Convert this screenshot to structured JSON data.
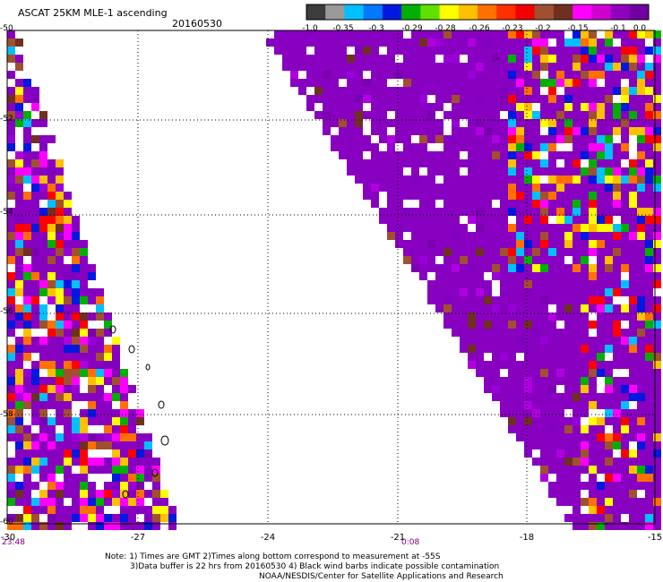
{
  "header": {
    "title": "ASCAT 25KM MLE-1 ascending",
    "date": "20160530"
  },
  "color_scale": {
    "labels": [
      "-1.0",
      "-0.35",
      "-0.3",
      "-0.29",
      "-0.28",
      "-0.26",
      "-0.23",
      "-0.2",
      "-0.15",
      "-0.1",
      "0.0"
    ],
    "colors": [
      "#3c3c3c",
      "#9a9a9a",
      "#00c0ff",
      "#0078ff",
      "#0018e0",
      "#00b000",
      "#60e000",
      "#ffff00",
      "#ffc000",
      "#ff7000",
      "#ff3000",
      "#f00000",
      "#a05030",
      "#703020",
      "#ff00ff",
      "#d000d0",
      "#9000c0",
      "#7000a0"
    ]
  },
  "map": {
    "lat_labels": [
      "-50",
      "-52",
      "-54",
      "-56",
      "-58",
      "-60"
    ],
    "lon_labels": [
      "-30",
      "-27",
      "-24",
      "-21",
      "-18",
      "-15"
    ],
    "time_labels": [
      "23:48",
      "0:08"
    ],
    "dominant_color": "#8800c0"
  },
  "footer": {
    "line1": "Note: 1) Times are GMT 2)Times along bottom correspond to measurement at -55S",
    "line2": "3)Data buffer is 22 hrs from 20160530 4) Black wind barbs indicate possible contamination",
    "line3": "NOAA/NESDIS/Center for Satellite Applications and Research"
  }
}
